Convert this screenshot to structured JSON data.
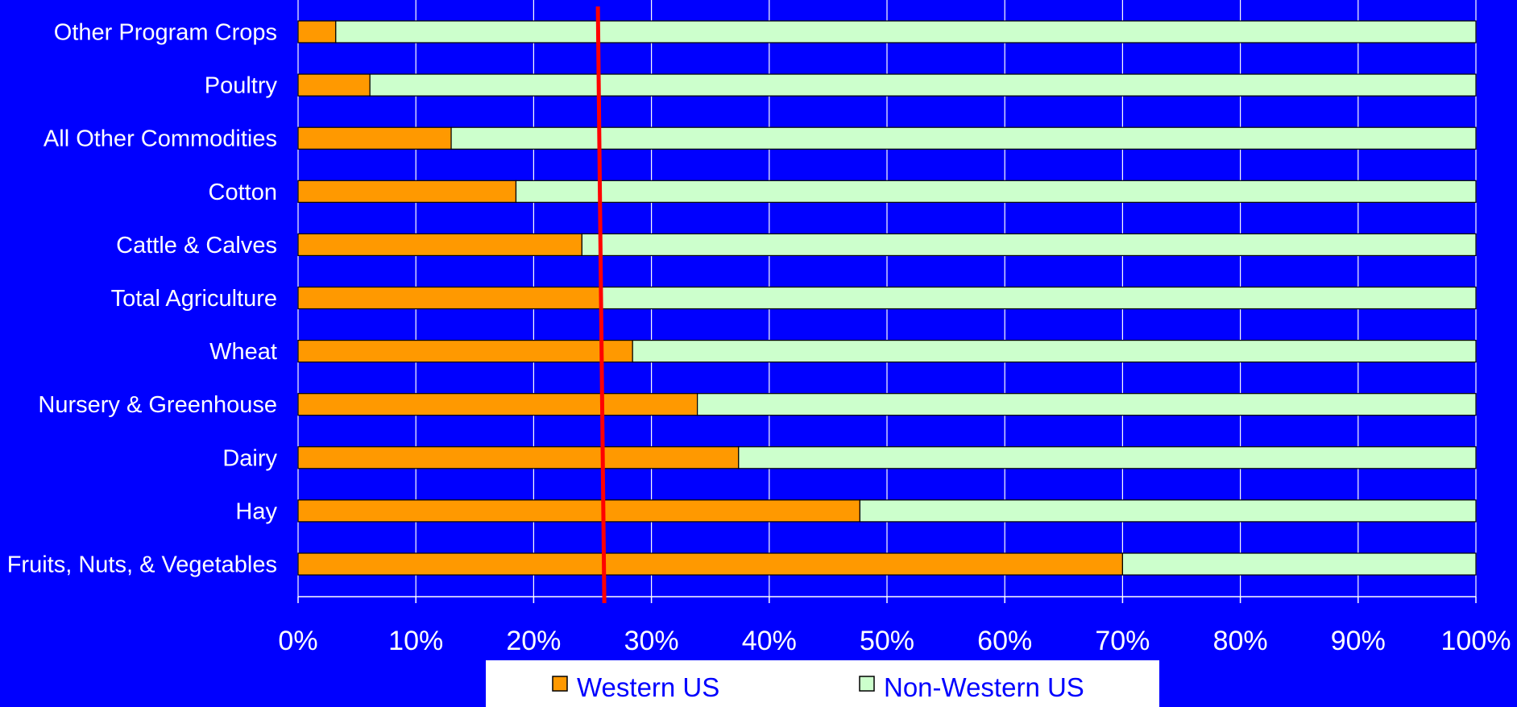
{
  "chart_data": {
    "type": "bar",
    "orientation": "horizontal",
    "stacked": "percent",
    "title": "",
    "xlabel": "",
    "ylabel": "",
    "categories": [
      "Fruits, Nuts, & Vegetables",
      "Hay",
      "Dairy",
      "Nursery & Greenhouse",
      "Wheat",
      "Total Agriculture",
      "Cattle & Calves",
      "Cotton",
      "All Other Commodities",
      "Poultry",
      "Other Program Crops"
    ],
    "series": [
      {
        "name": "Western US",
        "color": "#ff9900",
        "values": [
          70,
          47.7,
          37.4,
          33.9,
          28.4,
          25.7,
          24.1,
          18.5,
          13,
          6.1,
          3.2
        ]
      },
      {
        "name": "Non-Western US",
        "color": "#ccffcc",
        "values": [
          30,
          52.3,
          62.6,
          66.1,
          71.6,
          74.3,
          75.9,
          81.5,
          87,
          93.9,
          96.8
        ]
      }
    ],
    "x_ticks": [
      "0%",
      "10%",
      "20%",
      "30%",
      "40%",
      "50%",
      "60%",
      "70%",
      "80%",
      "90%",
      "100%"
    ],
    "xlim": [
      0,
      100
    ],
    "reference_line": {
      "value": 26,
      "color": "#ff0000"
    },
    "grid": true,
    "legend_position": "bottom",
    "background_color": "#0000ff",
    "grid_color": "#ffffff",
    "text_color": "#ffffff"
  }
}
